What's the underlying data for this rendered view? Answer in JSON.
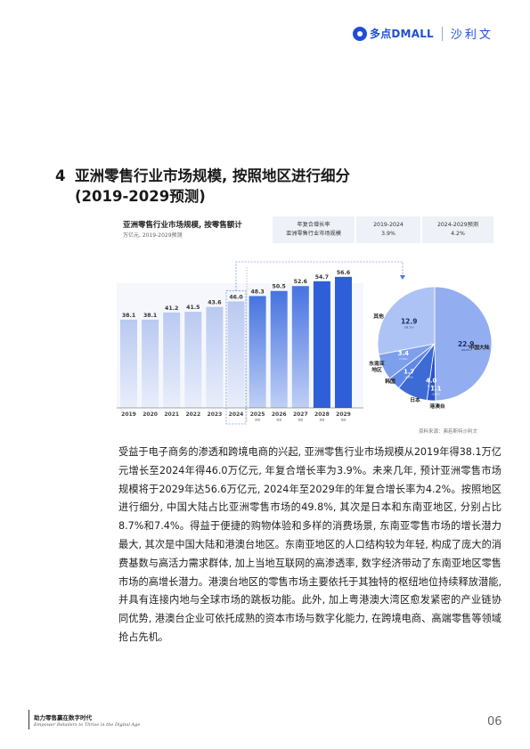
{
  "header": {
    "logo_text": "多点DMALL",
    "partner": "沙利文"
  },
  "section": {
    "number": "4",
    "title_line1": "亚洲零售行业市场规模, 按照地区进行细分",
    "title_line2": "(2019-2029预测)"
  },
  "chart_title": "亚洲零售行业市场规模, 按零售额计",
  "chart_subtitle": "万亿元, 2019-2029预测",
  "cagr": {
    "label1": "年复合增长率",
    "label2": "亚洲零售行业市场规模",
    "period1": "2019-2024",
    "value1": "3.9%",
    "period2": "2024-2029预测",
    "value2": "4.2%"
  },
  "colors": {
    "brand": "#1f4fd6",
    "bar_light": "#d7e1f8",
    "bar_dark": "#2f5fd8"
  },
  "chart_data": [
    {
      "type": "bar",
      "categories": [
        "2019",
        "2020",
        "2021",
        "2022",
        "2023",
        "2024",
        "2025E",
        "2026E",
        "2027E",
        "2028E",
        "2029E"
      ],
      "labels": [
        "2019",
        "2020",
        "2021",
        "2022",
        "2023",
        "2024",
        "2025",
        "2026",
        "2027",
        "2028",
        "2029"
      ],
      "sublabels": [
        "",
        "",
        "",
        "",
        "",
        "",
        "预测",
        "预测",
        "预测",
        "预测",
        "预测"
      ],
      "values": [
        38.1,
        38.1,
        41.2,
        41.5,
        43.6,
        46.0,
        48.3,
        50.5,
        52.6,
        54.7,
        56.6
      ],
      "title": "亚洲零售行业市场规模, 按零售额计",
      "subtitle": "万亿元, 2019-2029预测",
      "xlabel": "",
      "ylabel": "",
      "ylim": [
        0,
        60
      ]
    },
    {
      "type": "pie",
      "year": "2024",
      "slices": [
        {
          "label": "中国大陆",
          "value": 22.9,
          "share": "(49.8%)",
          "color": "#93aef0"
        },
        {
          "label": "港澳台",
          "value": 1.1,
          "share": "(2.3%)",
          "color": "#2a54c8"
        },
        {
          "label": "日本",
          "value": 4.0,
          "share": "(8.7%)",
          "color": "#3d6bd6"
        },
        {
          "label": "韩国",
          "value": 1.7,
          "share": "(3.6%)",
          "color": "#5f89e6"
        },
        {
          "label": "东南亚地区",
          "value": 3.4,
          "share": "(7.4%)",
          "color": "#7d9fec"
        },
        {
          "label": "其他",
          "value": 12.9,
          "share": "(28.1%)",
          "color": "#aec3f5"
        }
      ]
    }
  ],
  "source": "资料来源：弗若斯特沙利文",
  "body": "受益于电子商务的渗透和跨境电商的兴起, 亚洲零售行业市场规模从2019年得38.1万亿元增长至2024年得46.0万亿元, 年复合增长率为3.9%。未来几年, 预计亚洲零售市场规模将于2029年达56.6万亿元, 2024年至2029年的年复合增长率为4.2%。按照地区进行细分, 中国大陆占比亚洲零售市场的49.8%, 其次是日本和东南亚地区, 分别占比8.7%和7.4%。得益于便捷的购物体验和多样的消费场景, 东南亚零售市场的增长潜力最大, 其次是中国大陆和港澳台地区。东南亚地区的人口结构较为年轻, 构成了庞大的消费基数与高活力需求群体, 加上当地互联网的高渗透率, 数字经济带动了东南亚地区零售市场的高增长潜力。港澳台地区的零售市场主要依托于其独特的枢纽地位持续释放潜能, 并具有连接内地与全球市场的跳板功能。此外, 加上粤港澳大湾区愈发紧密的产业链协同优势, 港澳台企业可依托成熟的资本市场与数字化能力, 在跨境电商、高端零售等领域抢占先机。",
  "footer": {
    "title": "助力零售赢在数字时代",
    "subtitle": "Empower Retailers to Thrive in the Digital Age",
    "page": "06"
  }
}
